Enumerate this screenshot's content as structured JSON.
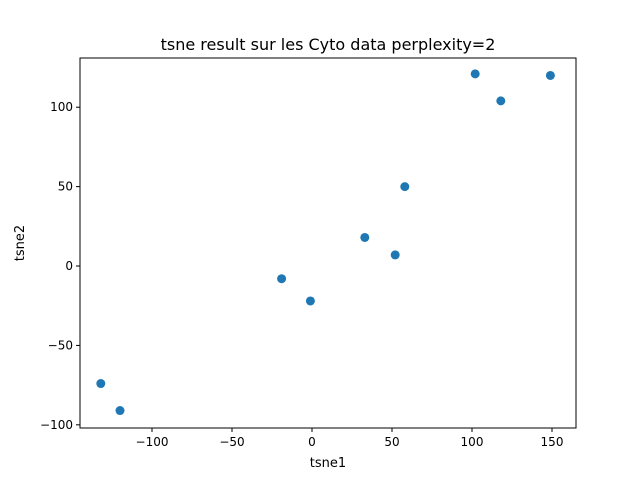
{
  "chart_data": {
    "type": "scatter",
    "title": "tsne result sur les Cyto data perplexity=2",
    "xlabel": "tsne1",
    "ylabel": "tsne2",
    "xlim": [
      -145,
      165
    ],
    "ylim": [
      -102,
      131
    ],
    "xticks": [
      -100,
      -50,
      0,
      50,
      100,
      150
    ],
    "xtick_labels": [
      "−100",
      "−50",
      "0",
      "50",
      "100",
      "150"
    ],
    "yticks": [
      -100,
      -50,
      0,
      50,
      100
    ],
    "ytick_labels": [
      "−100",
      "−50",
      "0",
      "50",
      "100"
    ],
    "grid": false,
    "marker_color": "#1f77b4",
    "points": [
      {
        "x": -132,
        "y": -74
      },
      {
        "x": -120,
        "y": -91
      },
      {
        "x": -19,
        "y": -8
      },
      {
        "x": -1,
        "y": -22
      },
      {
        "x": 33,
        "y": 18
      },
      {
        "x": 52,
        "y": 7
      },
      {
        "x": 58,
        "y": 50
      },
      {
        "x": 102,
        "y": 121
      },
      {
        "x": 118,
        "y": 104
      },
      {
        "x": 149,
        "y": 120
      }
    ]
  }
}
